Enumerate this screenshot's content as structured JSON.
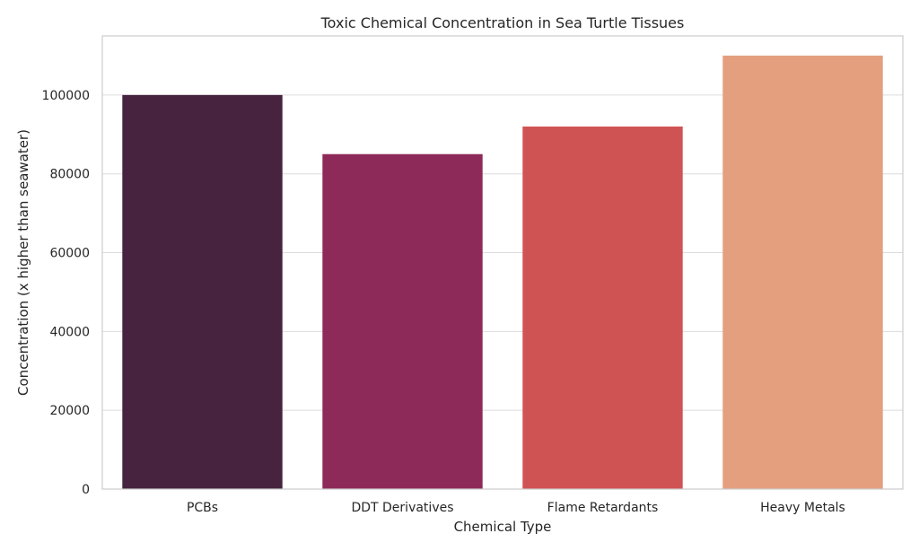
{
  "chart_data": {
    "type": "bar",
    "title": "Toxic Chemical Concentration in Sea Turtle Tissues",
    "xlabel": "Chemical Type",
    "ylabel": "Concentration (x higher than seawater)",
    "categories": [
      "PCBs",
      "DDT Derivatives",
      "Flame Retardants",
      "Heavy Metals"
    ],
    "values": [
      100000,
      85000,
      92000,
      110000
    ],
    "colors": [
      "#47233f",
      "#8e2a59",
      "#d05354",
      "#e49f7e"
    ],
    "ylim": [
      0,
      115000
    ],
    "yticks": [
      0,
      20000,
      40000,
      60000,
      80000,
      100000
    ],
    "grid": "horizontal",
    "legend": "none"
  }
}
